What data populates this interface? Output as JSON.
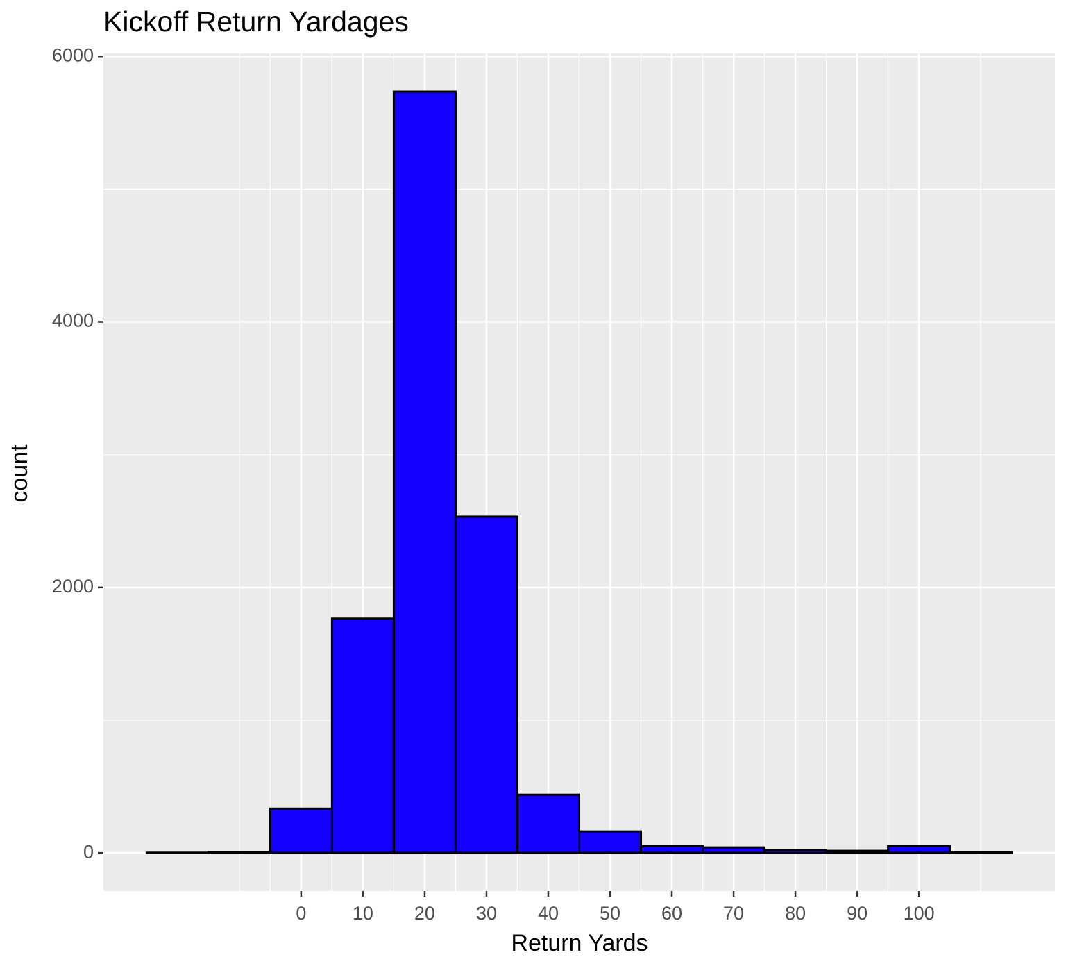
{
  "chart_data": {
    "type": "histogram",
    "title": "Kickoff Return Yardages",
    "x_label": "Return Yards",
    "y_label": "count",
    "bins": [
      -25,
      -15,
      -5,
      5,
      15,
      25,
      35,
      45,
      55,
      65,
      75,
      85,
      95,
      105,
      115
    ],
    "counts": [
      2,
      5,
      334,
      1765,
      5734,
      2533,
      439,
      162,
      52,
      42,
      21,
      16,
      52,
      5
    ],
    "color": "#1400ff",
    "edge_color": "#000000",
    "xlim": [
      -32,
      122
    ],
    "ylim": [
      -287,
      6022
    ],
    "xticks": [
      0,
      10,
      20,
      30,
      40,
      50,
      60,
      70,
      80,
      90,
      100
    ],
    "yticks": [
      0,
      2000,
      4000,
      6000
    ],
    "x_minor_grid": [
      -10,
      -5,
      5,
      15,
      25,
      35,
      45,
      55,
      65,
      75,
      85,
      95,
      110
    ],
    "y_minor_grid": [
      1000,
      3000,
      5000
    ],
    "grid": true
  }
}
